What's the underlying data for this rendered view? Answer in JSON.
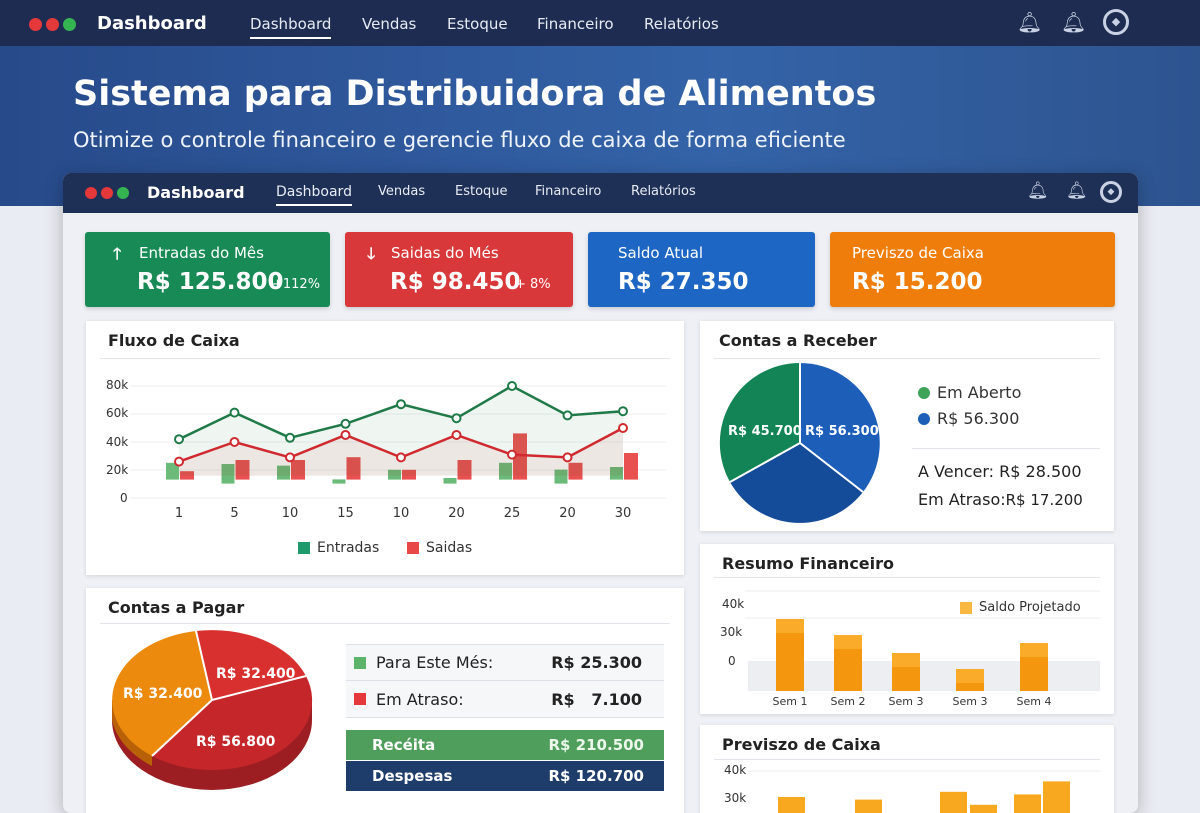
{
  "topbar": {
    "brand": "Dashboard",
    "nav": [
      "Dashboard",
      "Vendas",
      "Estoque",
      "Financeiro",
      "Relatórios"
    ],
    "icons": [
      "bell-icon",
      "bell-icon",
      "user-badge-icon"
    ]
  },
  "hero": {
    "title": "Sistema para Distribuidora de Alimentos",
    "subtitle": "Otimize o controle financeiro e gerencie fluxo de caixa de forma eficiente"
  },
  "window": {
    "brand": "Dashboard",
    "nav": [
      "Dashboard",
      "Vendas",
      "Estoque",
      "Financeiro",
      "Relatórios"
    ]
  },
  "cards": [
    {
      "label": "Entradas do Mês",
      "value": "R$ 125.800",
      "change": "+112%",
      "icon": "arrow-up-icon",
      "color": "#178a55"
    },
    {
      "label": "Saidas do Més",
      "value": "R$ 98.450",
      "change": "+ 8%",
      "icon": "arrow-down-icon",
      "color": "#d9383a"
    },
    {
      "label": "Saldo Atual",
      "value": "R$ 27.350",
      "color": "#1d66c4"
    },
    {
      "label": "Previszo de Caixa",
      "value": "R$ 15.200",
      "color": "#ef7d0b"
    }
  ],
  "colors": {
    "green": "#1f7a48",
    "red": "#cf2a2f",
    "bar_green": "#5cb36a",
    "bar_red": "#e84848",
    "orange": "#f59c12",
    "navy": "#1f3d6b"
  },
  "chart_data": [
    {
      "type": "line",
      "title": "Fluxo de Caixa",
      "categories": [
        "1",
        "5",
        "10",
        "15",
        "10",
        "20",
        "25",
        "20",
        "30"
      ],
      "yticks": [
        "80k",
        "60k",
        "40k",
        "20k",
        "0"
      ],
      "ylim": [
        0,
        80000
      ],
      "series": [
        {
          "name": "Entradas",
          "values": [
            42000,
            61000,
            43000,
            53000,
            67000,
            57000,
            80000,
            59000,
            62000
          ]
        },
        {
          "name": "Saidas",
          "values": [
            26000,
            40000,
            29000,
            45000,
            29000,
            45000,
            31000,
            29000,
            50000
          ]
        }
      ],
      "bars": [
        {
          "name": "Entradas",
          "values": [
            12000,
            14000,
            10000,
            3000,
            7000,
            4000,
            12000,
            10000,
            9000
          ]
        },
        {
          "name": "Saidas",
          "values": [
            6000,
            14000,
            14000,
            16000,
            7000,
            14000,
            33000,
            12000,
            19000
          ]
        }
      ],
      "legend": [
        "Entradas",
        "Saidas"
      ]
    },
    {
      "type": "pie",
      "title": "Contas a Receber",
      "slices": [
        {
          "label": "R$ 56.300",
          "value": 56300
        },
        {
          "label": "",
          "value": 43000
        },
        {
          "label": "R$ 45.700",
          "value": 45700
        }
      ],
      "legend": [
        {
          "label": "Em Aberto",
          "color": "#3fa35a"
        },
        {
          "label": "R$ 56.300",
          "color": "#1d5fb8"
        }
      ],
      "notes": [
        {
          "label": "A Vencer:",
          "value": "R$ 28.500"
        },
        {
          "label": "Em Atraso:",
          "value": "R$ 17.200"
        }
      ]
    },
    {
      "type": "bar",
      "title": "Resumo Financeiro",
      "categories": [
        "Sem 1",
        "Sem 2",
        "Sem 3",
        "Sem 3",
        "Sem 4"
      ],
      "values": [
        36000,
        28000,
        19000,
        11000,
        24000
      ],
      "yticks": [
        "40k",
        "30k",
        "0"
      ],
      "legend": [
        "Saldo Projetado"
      ]
    },
    {
      "type": "bar",
      "title": "Previszo de Caixa",
      "values": [
        30000,
        29000,
        32000,
        27000,
        31000,
        36000
      ],
      "yticks": [
        "40k",
        "30k"
      ]
    },
    {
      "type": "pie",
      "title": "Contas a Pagar",
      "slices": [
        {
          "label": "R$ 32.400",
          "value": 32400
        },
        {
          "label": "R$ 56.800",
          "value": 56800
        },
        {
          "label": "R$ 32.400",
          "value": 32400
        }
      ]
    }
  ],
  "pagar": {
    "rows": [
      {
        "label": "Para Este Més:",
        "value": "R$ 25.300"
      },
      {
        "label": "Em Atraso:",
        "value": "R$   7.100"
      }
    ],
    "bands": [
      {
        "label": "Recéita",
        "value": "R$ 210.500"
      },
      {
        "label": "Despesas",
        "value": "R$ 120.700"
      }
    ]
  }
}
